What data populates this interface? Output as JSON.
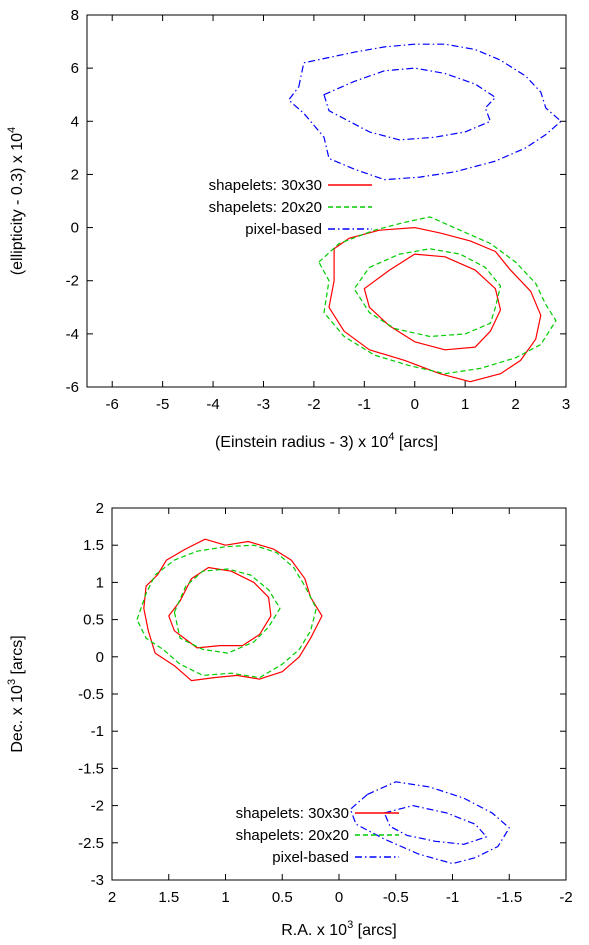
{
  "chart_data": [
    {
      "type": "line",
      "xlabel_main": "(Einstein radius - 3) x 10",
      "xlabel_sup": "4",
      "xlabel_tail": " [arcs]",
      "ylabel_main": "(ellipticity - 0.3) x 10",
      "ylabel_sup": "4",
      "ylabel_tail": "",
      "xlim": [
        -6.5,
        3
      ],
      "ylim": [
        -6,
        8
      ],
      "x_reversed": false,
      "xticks": [
        -6,
        -5,
        -4,
        -3,
        -2,
        -1,
        0,
        1,
        2,
        3
      ],
      "yticks": [
        -6,
        -4,
        -2,
        0,
        2,
        4,
        6,
        8
      ],
      "legend": [
        {
          "label": "shapelets: 30x30",
          "color": "#ff0000",
          "dash": "solid"
        },
        {
          "label": "shapelets: 20x20",
          "color": "#00cc00",
          "dash": "dashed"
        },
        {
          "label": "pixel-based",
          "color": "#0000ff",
          "dash": "dashdot"
        }
      ],
      "series": [
        {
          "color": "#ff0000",
          "dash": "solid",
          "closed": true,
          "points": [
            [
              -1.6,
              -0.8
            ],
            [
              -1.3,
              -0.4
            ],
            [
              -0.7,
              -0.1
            ],
            [
              0.0,
              0.0
            ],
            [
              0.5,
              -0.2
            ],
            [
              1.1,
              -0.5
            ],
            [
              1.6,
              -0.9
            ],
            [
              1.9,
              -1.6
            ],
            [
              2.3,
              -2.4
            ],
            [
              2.5,
              -3.3
            ],
            [
              2.4,
              -4.2
            ],
            [
              2.1,
              -5.0
            ],
            [
              1.7,
              -5.5
            ],
            [
              1.1,
              -5.8
            ],
            [
              0.5,
              -5.5
            ],
            [
              -0.2,
              -5.0
            ],
            [
              -0.9,
              -4.6
            ],
            [
              -1.4,
              -3.9
            ],
            [
              -1.7,
              -3.0
            ],
            [
              -1.6,
              -2.0
            ]
          ]
        },
        {
          "color": "#ff0000",
          "dash": "solid",
          "closed": true,
          "points": [
            [
              -0.5,
              -1.6
            ],
            [
              0.0,
              -1.0
            ],
            [
              0.6,
              -1.1
            ],
            [
              1.2,
              -1.6
            ],
            [
              1.6,
              -2.3
            ],
            [
              1.7,
              -3.1
            ],
            [
              1.5,
              -3.9
            ],
            [
              1.2,
              -4.5
            ],
            [
              0.6,
              -4.6
            ],
            [
              0.0,
              -4.3
            ],
            [
              -0.5,
              -3.7
            ],
            [
              -0.9,
              -3.0
            ],
            [
              -1.0,
              -2.3
            ]
          ]
        },
        {
          "color": "#00cc00",
          "dash": "dashed",
          "closed": true,
          "points": [
            [
              -1.9,
              -1.3
            ],
            [
              -1.5,
              -0.6
            ],
            [
              -0.8,
              -0.1
            ],
            [
              -0.2,
              0.2
            ],
            [
              0.3,
              0.4
            ],
            [
              0.9,
              -0.1
            ],
            [
              1.5,
              -0.6
            ],
            [
              2.0,
              -1.3
            ],
            [
              2.4,
              -2.1
            ],
            [
              2.6,
              -2.9
            ],
            [
              2.8,
              -3.5
            ],
            [
              2.5,
              -4.4
            ],
            [
              2.0,
              -4.9
            ],
            [
              1.3,
              -5.3
            ],
            [
              0.6,
              -5.5
            ],
            [
              -0.1,
              -5.2
            ],
            [
              -0.8,
              -4.8
            ],
            [
              -1.4,
              -4.1
            ],
            [
              -1.8,
              -3.2
            ],
            [
              -1.7,
              -2.0
            ]
          ]
        },
        {
          "color": "#00cc00",
          "dash": "dashed",
          "closed": true,
          "points": [
            [
              -0.9,
              -1.5
            ],
            [
              -0.3,
              -1.0
            ],
            [
              0.3,
              -0.8
            ],
            [
              0.9,
              -1.0
            ],
            [
              1.4,
              -1.5
            ],
            [
              1.7,
              -2.2
            ],
            [
              1.6,
              -3.0
            ],
            [
              1.5,
              -3.6
            ],
            [
              1.0,
              -4.0
            ],
            [
              0.3,
              -4.1
            ],
            [
              -0.4,
              -3.8
            ],
            [
              -0.9,
              -3.2
            ],
            [
              -1.2,
              -2.3
            ]
          ]
        },
        {
          "color": "#0000ff",
          "dash": "dashdot",
          "closed": true,
          "points": [
            [
              -2.3,
              5.3
            ],
            [
              -2.2,
              6.2
            ],
            [
              -1.7,
              6.4
            ],
            [
              -1.2,
              6.6
            ],
            [
              -0.6,
              6.8
            ],
            [
              0.0,
              6.9
            ],
            [
              0.6,
              6.9
            ],
            [
              1.2,
              6.7
            ],
            [
              1.7,
              6.3
            ],
            [
              2.2,
              5.7
            ],
            [
              2.5,
              5.1
            ],
            [
              2.6,
              4.5
            ],
            [
              2.9,
              4.0
            ],
            [
              2.6,
              3.5
            ],
            [
              2.2,
              3.0
            ],
            [
              1.6,
              2.5
            ],
            [
              0.8,
              2.1
            ],
            [
              0.1,
              1.9
            ],
            [
              -0.6,
              1.8
            ],
            [
              -1.2,
              2.2
            ],
            [
              -1.7,
              2.6
            ],
            [
              -1.8,
              3.4
            ],
            [
              -2.2,
              4.3
            ],
            [
              -2.5,
              4.8
            ]
          ]
        },
        {
          "color": "#0000ff",
          "dash": "dashdot",
          "closed": true,
          "points": [
            [
              -1.8,
              5.0
            ],
            [
              -1.2,
              5.5
            ],
            [
              -0.6,
              5.9
            ],
            [
              0.0,
              6.0
            ],
            [
              0.6,
              5.8
            ],
            [
              1.2,
              5.4
            ],
            [
              1.6,
              4.9
            ],
            [
              1.4,
              4.5
            ],
            [
              1.5,
              4.0
            ],
            [
              1.0,
              3.6
            ],
            [
              0.4,
              3.4
            ],
            [
              -0.3,
              3.3
            ],
            [
              -0.9,
              3.6
            ],
            [
              -1.3,
              4.0
            ],
            [
              -1.7,
              4.4
            ]
          ]
        }
      ]
    },
    {
      "type": "line",
      "xlabel_main": "R.A. x 10",
      "xlabel_sup": "3",
      "xlabel_tail": " [arcs]",
      "ylabel_main": "Dec. x 10",
      "ylabel_sup": "3",
      "ylabel_tail": " [arcs]",
      "xlim": [
        2,
        -2
      ],
      "ylim": [
        -3,
        2
      ],
      "x_reversed": true,
      "xticks": [
        2,
        1.5,
        1,
        0.5,
        0,
        -0.5,
        -1,
        -1.5,
        -2
      ],
      "yticks": [
        -3,
        -2.5,
        -2,
        -1.5,
        -1,
        -0.5,
        0,
        0.5,
        1,
        1.5,
        2
      ],
      "legend": [
        {
          "label": "shapelets: 30x30",
          "color": "#ff0000",
          "dash": "solid"
        },
        {
          "label": "shapelets: 20x20",
          "color": "#00cc00",
          "dash": "dashed"
        },
        {
          "label": "pixel-based",
          "color": "#0000ff",
          "dash": "dashdot"
        }
      ],
      "series": [
        {
          "color": "#ff0000",
          "dash": "solid",
          "closed": true,
          "points": [
            [
              1.72,
              0.65
            ],
            [
              1.7,
              0.95
            ],
            [
              1.6,
              1.1
            ],
            [
              1.52,
              1.3
            ],
            [
              1.35,
              1.45
            ],
            [
              1.18,
              1.58
            ],
            [
              1.0,
              1.5
            ],
            [
              0.8,
              1.55
            ],
            [
              0.58,
              1.45
            ],
            [
              0.42,
              1.3
            ],
            [
              0.3,
              1.05
            ],
            [
              0.25,
              0.8
            ],
            [
              0.15,
              0.55
            ],
            [
              0.25,
              0.25
            ],
            [
              0.35,
              0.0
            ],
            [
              0.5,
              -0.2
            ],
            [
              0.7,
              -0.3
            ],
            [
              0.9,
              -0.25
            ],
            [
              1.1,
              -0.28
            ],
            [
              1.3,
              -0.32
            ],
            [
              1.45,
              -0.12
            ],
            [
              1.62,
              0.05
            ],
            [
              1.68,
              0.35
            ]
          ]
        },
        {
          "color": "#ff0000",
          "dash": "solid",
          "closed": true,
          "points": [
            [
              1.4,
              0.75
            ],
            [
              1.3,
              1.05
            ],
            [
              1.15,
              1.2
            ],
            [
              0.95,
              1.15
            ],
            [
              0.75,
              1.0
            ],
            [
              0.62,
              0.8
            ],
            [
              0.6,
              0.55
            ],
            [
              0.7,
              0.3
            ],
            [
              0.85,
              0.15
            ],
            [
              1.05,
              0.15
            ],
            [
              1.25,
              0.12
            ],
            [
              1.45,
              0.35
            ],
            [
              1.5,
              0.55
            ]
          ]
        },
        {
          "color": "#00cc00",
          "dash": "dashed",
          "closed": true,
          "points": [
            [
              1.78,
              0.5
            ],
            [
              1.7,
              0.85
            ],
            [
              1.62,
              1.1
            ],
            [
              1.45,
              1.3
            ],
            [
              1.25,
              1.42
            ],
            [
              1.0,
              1.48
            ],
            [
              0.75,
              1.5
            ],
            [
              0.55,
              1.4
            ],
            [
              0.4,
              1.2
            ],
            [
              0.3,
              0.95
            ],
            [
              0.2,
              0.65
            ],
            [
              0.25,
              0.35
            ],
            [
              0.35,
              0.1
            ],
            [
              0.5,
              -0.1
            ],
            [
              0.7,
              -0.28
            ],
            [
              0.95,
              -0.22
            ],
            [
              1.2,
              -0.25
            ],
            [
              1.4,
              -0.1
            ],
            [
              1.55,
              0.1
            ],
            [
              1.7,
              0.25
            ]
          ]
        },
        {
          "color": "#00cc00",
          "dash": "dashed",
          "closed": true,
          "points": [
            [
              1.45,
              0.6
            ],
            [
              1.35,
              0.95
            ],
            [
              1.2,
              1.15
            ],
            [
              0.98,
              1.18
            ],
            [
              0.78,
              1.1
            ],
            [
              0.62,
              0.9
            ],
            [
              0.52,
              0.65
            ],
            [
              0.62,
              0.4
            ],
            [
              0.75,
              0.2
            ],
            [
              0.98,
              0.05
            ],
            [
              1.2,
              0.1
            ],
            [
              1.4,
              0.25
            ]
          ]
        },
        {
          "color": "#0000ff",
          "dash": "dashdot",
          "closed": true,
          "points": [
            [
              -0.25,
              -1.85
            ],
            [
              -0.5,
              -1.68
            ],
            [
              -0.8,
              -1.75
            ],
            [
              -1.1,
              -1.9
            ],
            [
              -1.35,
              -2.1
            ],
            [
              -1.5,
              -2.3
            ],
            [
              -1.4,
              -2.55
            ],
            [
              -1.2,
              -2.7
            ],
            [
              -1.0,
              -2.78
            ],
            [
              -0.7,
              -2.65
            ],
            [
              -0.4,
              -2.45
            ],
            [
              -0.15,
              -2.25
            ],
            [
              -0.1,
              -2.05
            ]
          ]
        },
        {
          "color": "#0000ff",
          "dash": "dashdot",
          "closed": true,
          "points": [
            [
              -0.4,
              -2.1
            ],
            [
              -0.65,
              -2.0
            ],
            [
              -0.95,
              -2.1
            ],
            [
              -1.2,
              -2.25
            ],
            [
              -1.3,
              -2.42
            ],
            [
              -1.1,
              -2.52
            ],
            [
              -0.85,
              -2.48
            ],
            [
              -0.6,
              -2.4
            ],
            [
              -0.45,
              -2.28
            ]
          ]
        }
      ]
    }
  ]
}
